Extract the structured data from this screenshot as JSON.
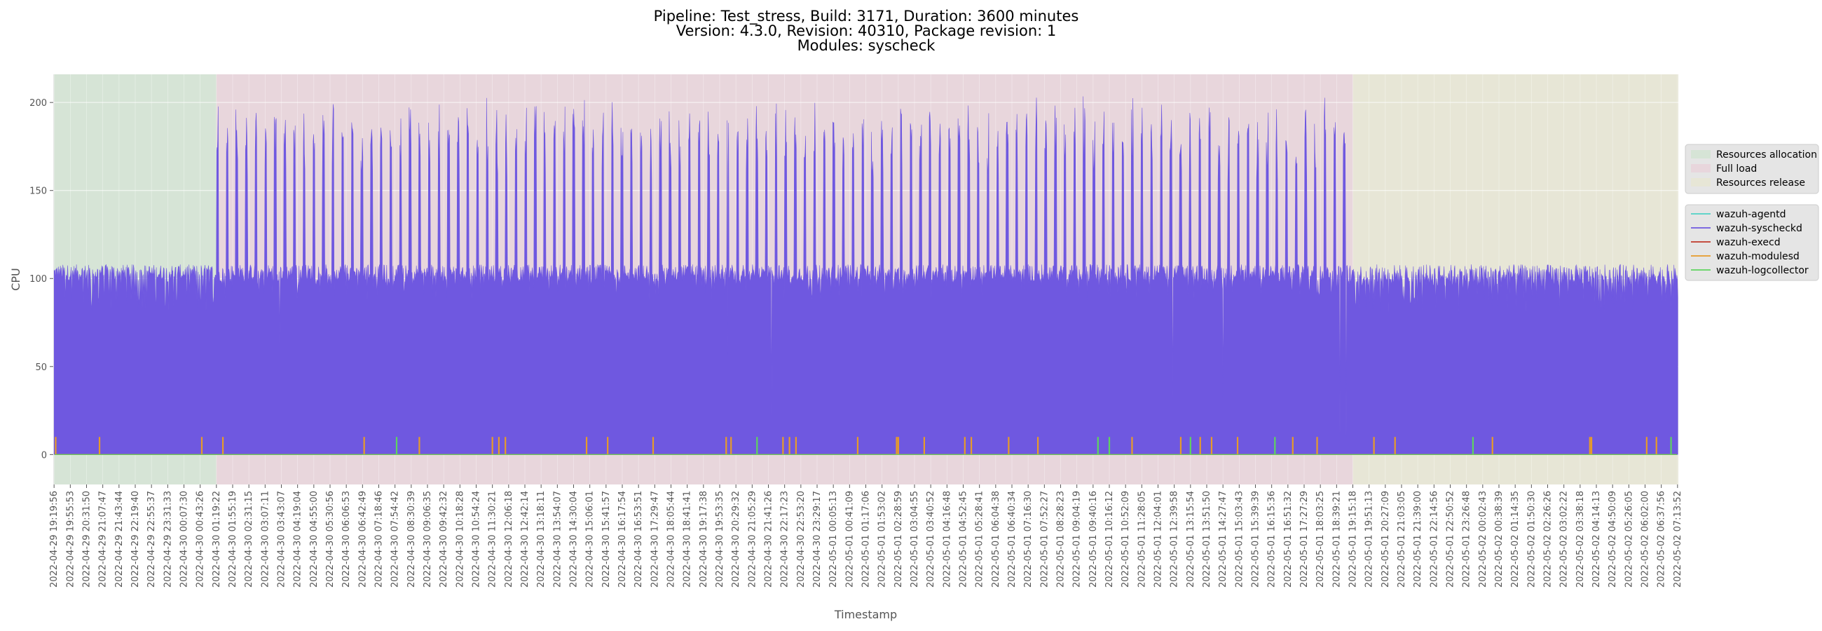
{
  "chart_data": {
    "type": "line",
    "title_lines": [
      "Pipeline: Test_stress, Build: 3171, Duration: 3600 minutes",
      "Version: 4.3.0, Revision: 40310, Package revision: 1",
      "Modules: syscheck"
    ],
    "xlabel": "Timestamp",
    "ylabel": "CPU",
    "ylim": [
      -17,
      216
    ],
    "yticks": [
      0,
      50,
      100,
      150,
      200
    ],
    "grid": true,
    "background": "#e5e5e5",
    "xtick_labels": [
      "2022-04-29 19:19:56",
      "2022-04-29 19:55:53",
      "2022-04-29 20:31:50",
      "2022-04-29 21:07:47",
      "2022-04-29 21:43:44",
      "2022-04-29 22:19:40",
      "2022-04-29 22:55:37",
      "2022-04-29 23:31:33",
      "2022-04-30 00:07:30",
      "2022-04-30 00:43:26",
      "2022-04-30 01:19:22",
      "2022-04-30 01:55:19",
      "2022-04-30 02:31:15",
      "2022-04-30 03:07:11",
      "2022-04-30 03:43:07",
      "2022-04-30 04:19:04",
      "2022-04-30 04:55:00",
      "2022-04-30 05:30:56",
      "2022-04-30 06:06:53",
      "2022-04-30 06:42:49",
      "2022-04-30 07:18:46",
      "2022-04-30 07:54:42",
      "2022-04-30 08:30:39",
      "2022-04-30 09:06:35",
      "2022-04-30 09:42:32",
      "2022-04-30 10:18:28",
      "2022-04-30 10:54:24",
      "2022-04-30 11:30:21",
      "2022-04-30 12:06:18",
      "2022-04-30 12:42:14",
      "2022-04-30 13:18:11",
      "2022-04-30 13:54:07",
      "2022-04-30 14:30:04",
      "2022-04-30 15:06:01",
      "2022-04-30 15:41:57",
      "2022-04-30 16:17:54",
      "2022-04-30 16:53:51",
      "2022-04-30 17:29:47",
      "2022-04-30 18:05:44",
      "2022-04-30 18:41:41",
      "2022-04-30 19:17:38",
      "2022-04-30 19:53:35",
      "2022-04-30 20:29:32",
      "2022-04-30 21:05:29",
      "2022-04-30 21:41:26",
      "2022-04-30 22:17:23",
      "2022-04-30 22:53:20",
      "2022-04-30 23:29:17",
      "2022-05-01 00:05:13",
      "2022-05-01 00:41:09",
      "2022-05-01 01:17:06",
      "2022-05-01 01:53:02",
      "2022-05-01 02:28:59",
      "2022-05-01 03:04:55",
      "2022-05-01 03:40:52",
      "2022-05-01 04:16:48",
      "2022-05-01 04:52:45",
      "2022-05-01 05:28:41",
      "2022-05-01 06:04:38",
      "2022-05-01 06:40:34",
      "2022-05-01 07:16:30",
      "2022-05-01 07:52:27",
      "2022-05-01 08:28:23",
      "2022-05-01 09:04:19",
      "2022-05-01 09:40:16",
      "2022-05-01 10:16:12",
      "2022-05-01 10:52:09",
      "2022-05-01 11:28:05",
      "2022-05-01 12:04:01",
      "2022-05-01 12:39:58",
      "2022-05-01 13:15:54",
      "2022-05-01 13:51:50",
      "2022-05-01 14:27:47",
      "2022-05-01 15:03:43",
      "2022-05-01 15:39:39",
      "2022-05-01 16:15:36",
      "2022-05-01 16:51:32",
      "2022-05-01 17:27:29",
      "2022-05-01 18:03:25",
      "2022-05-01 18:39:21",
      "2022-05-01 19:15:18",
      "2022-05-01 19:51:13",
      "2022-05-01 20:27:09",
      "2022-05-01 21:03:05",
      "2022-05-01 21:39:00",
      "2022-05-01 22:14:56",
      "2022-05-01 22:50:52",
      "2022-05-01 23:26:48",
      "2022-05-02 00:02:43",
      "2022-05-02 00:38:39",
      "2022-05-02 01:14:35",
      "2022-05-02 01:50:30",
      "2022-05-02 02:26:26",
      "2022-05-02 03:02:22",
      "2022-05-02 03:38:18",
      "2022-05-02 04:14:13",
      "2022-05-02 04:50:09",
      "2022-05-02 05:26:05",
      "2022-05-02 06:02:00",
      "2022-05-02 06:37:56",
      "2022-05-02 07:13:52"
    ],
    "phases": [
      {
        "name": "Resources allocation",
        "start_tick": 0,
        "end_tick": 10,
        "color": "#d6e4d6"
      },
      {
        "name": "Full load",
        "start_tick": 10,
        "end_tick": 80,
        "color": "#e8d6dc"
      },
      {
        "name": "Resources release",
        "start_tick": 80,
        "end_tick": 100.1,
        "color": "#e7e6d6"
      }
    ],
    "series": [
      {
        "name": "wazuh-agentd",
        "color": "#4fd1c5",
        "kind": "flat",
        "value": 0
      },
      {
        "name": "wazuh-syscheckd",
        "color": "#6f58e0",
        "kind": "cycling",
        "baseline_by_phase": [
          [
            98,
            108
          ],
          [
            98,
            108
          ],
          [
            95,
            108
          ]
        ],
        "low_floor_by_phase": [
          80,
          88,
          80
        ],
        "peak_range_full_load": [
          178,
          205
        ],
        "peak_count_full_load": 118,
        "dips": [
          {
            "at_tick": 13.9,
            "value": 63
          },
          {
            "at_tick": 41.5,
            "value": 57
          },
          {
            "at_tick": 44.2,
            "value": 20
          },
          {
            "at_tick": 68.9,
            "value": 30
          },
          {
            "at_tick": 72.0,
            "value": 31
          },
          {
            "at_tick": 79.2,
            "value": 11
          },
          {
            "at_tick": 79.6,
            "value": 10
          }
        ]
      },
      {
        "name": "wazuh-execd",
        "color": "#c0392b",
        "kind": "flat",
        "value": 0
      },
      {
        "name": "wazuh-modulesd",
        "color": "#e69b2a",
        "kind": "spikes",
        "value": 0,
        "spike_height": 10,
        "spike_ticks": [
          0.1,
          2.8,
          9.1,
          10.4,
          19.1,
          22.5,
          27.0,
          27.4,
          27.8,
          32.8,
          34.1,
          36.9,
          41.4,
          41.7,
          44.9,
          45.3,
          45.7,
          49.5,
          51.9,
          52.0,
          53.6,
          56.1,
          56.5,
          58.8,
          60.6,
          66.4,
          69.4,
          70.6,
          71.3,
          72.9,
          76.3,
          77.8,
          81.3,
          82.6,
          88.6,
          94.6,
          94.7,
          98.1,
          98.7
        ]
      },
      {
        "name": "wazuh-logcollector",
        "color": "#5fd35f",
        "kind": "spikes",
        "value": 0,
        "spike_height": 10,
        "spike_ticks": [
          21.1,
          43.3,
          64.3,
          65.0,
          70.0,
          75.2,
          87.4,
          99.6
        ]
      }
    ],
    "legend_position": "right"
  }
}
